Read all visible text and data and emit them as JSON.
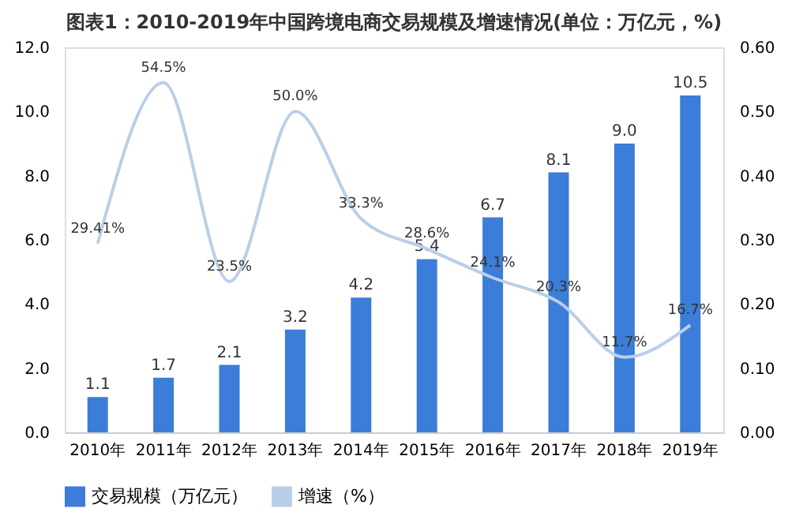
{
  "chart_data": {
    "type": "bar",
    "title": "图表1：2010-2019年中国跨境电商交易规模及增速情况(单位：万亿元，%)",
    "categories": [
      "2010年",
      "2011年",
      "2012年",
      "2013年",
      "2014年",
      "2015年",
      "2016年",
      "2017年",
      "2018年",
      "2019年"
    ],
    "series": [
      {
        "name": "交易规模（万亿元）",
        "color": "#3b7dd8",
        "values": [
          1.1,
          1.7,
          2.1,
          3.2,
          4.2,
          5.4,
          6.7,
          8.1,
          9.0,
          10.5
        ],
        "value_labels": [
          "1.1",
          "1.7",
          "2.1",
          "3.2",
          "4.2",
          "5.4",
          "6.7",
          "8.1",
          "9.0",
          "10.5"
        ]
      },
      {
        "name": "增速（%）",
        "type": "line",
        "axis": "y2",
        "color": "#b9cfe9",
        "values": [
          0.2941,
          0.545,
          0.235,
          0.5,
          0.333,
          0.286,
          0.241,
          0.203,
          0.117,
          0.167
        ],
        "value_labels": [
          "29.41%",
          "54.5%",
          "23.5%",
          "50.0%",
          "33.3%",
          "28.6%",
          "24.1%",
          "20.3%",
          "11.7%",
          "16.7%"
        ]
      }
    ],
    "ylim": [
      0,
      12
    ],
    "yticks": [
      {
        "value": 0,
        "label": "0.0"
      },
      {
        "value": 2,
        "label": "2.0"
      },
      {
        "value": 4,
        "label": "4.0"
      },
      {
        "value": 6,
        "label": "6.0"
      },
      {
        "value": 8,
        "label": "8.0"
      },
      {
        "value": 10,
        "label": "10.0"
      },
      {
        "value": 12,
        "label": "12.0"
      }
    ],
    "y2lim": [
      0,
      0.6
    ],
    "y2ticks": [
      {
        "value": 0,
        "label": "0.00"
      },
      {
        "value": 0.1,
        "label": "0.10"
      },
      {
        "value": 0.2,
        "label": "0.20"
      },
      {
        "value": 0.3,
        "label": "0.30"
      },
      {
        "value": 0.4,
        "label": "0.40"
      },
      {
        "value": 0.5,
        "label": "0.50"
      },
      {
        "value": 0.6,
        "label": "0.60"
      }
    ],
    "grid": false,
    "legend": "bottom"
  }
}
